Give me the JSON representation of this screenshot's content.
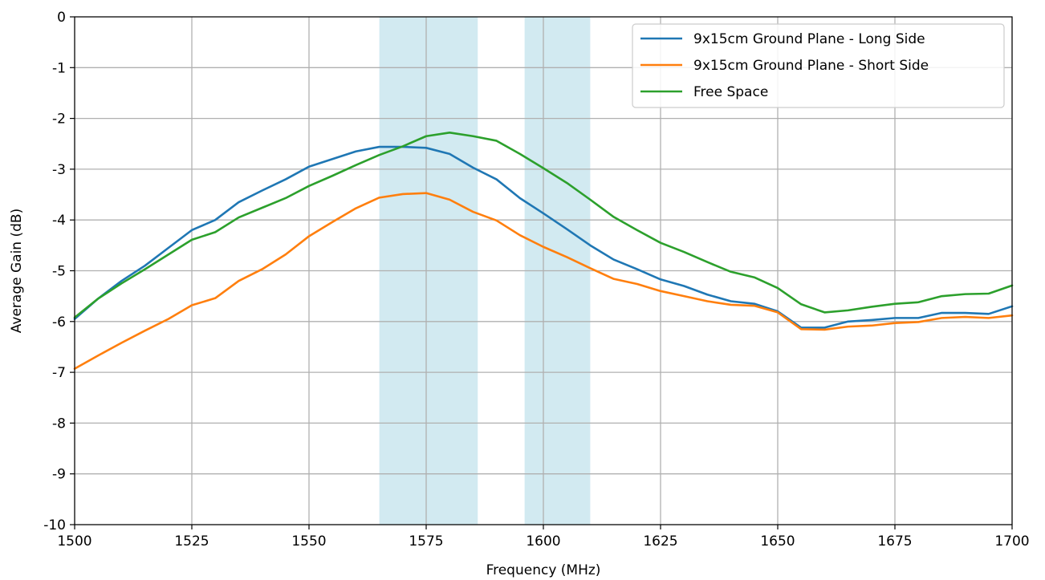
{
  "chart_data": {
    "type": "line",
    "title": "",
    "xlabel": "Frequency (MHz)",
    "ylabel": "Average Gain (dB)",
    "xlim": [
      1500,
      1700
    ],
    "ylim": [
      -10,
      0
    ],
    "xticks": [
      1500,
      1525,
      1550,
      1575,
      1600,
      1625,
      1650,
      1675,
      1700
    ],
    "yticks": [
      0,
      -1,
      -2,
      -3,
      -4,
      -5,
      -6,
      -7,
      -8,
      -9,
      -10
    ],
    "grid": true,
    "legend_position": "top-right",
    "shaded_bands": [
      {
        "x_start": 1565,
        "x_end": 1586,
        "color": "#add8e6"
      },
      {
        "x_start": 1596,
        "x_end": 1610,
        "color": "#add8e6"
      }
    ],
    "series": [
      {
        "name": "9x15cm Ground Plane - Long Side",
        "color": "#1f77b4",
        "x": [
          1500,
          1505,
          1510,
          1515,
          1520,
          1525,
          1530,
          1535,
          1540,
          1545,
          1550,
          1555,
          1560,
          1565,
          1570,
          1575,
          1580,
          1585,
          1590,
          1595,
          1600,
          1605,
          1610,
          1615,
          1620,
          1625,
          1630,
          1635,
          1640,
          1645,
          1650,
          1655,
          1660,
          1665,
          1670,
          1675,
          1680,
          1685,
          1690,
          1695,
          1700
        ],
        "y": [
          -5.95,
          -5.55,
          -5.2,
          -4.9,
          -4.55,
          -4.2,
          -4.0,
          -3.65,
          -3.42,
          -3.2,
          -2.95,
          -2.8,
          -2.65,
          -2.56,
          -2.56,
          -2.58,
          -2.7,
          -2.97,
          -3.2,
          -3.57,
          -3.87,
          -4.18,
          -4.5,
          -4.78,
          -4.97,
          -5.17,
          -5.3,
          -5.47,
          -5.6,
          -5.65,
          -5.8,
          -6.12,
          -6.12,
          -6.0,
          -5.97,
          -5.93,
          -5.93,
          -5.83,
          -5.83,
          -5.85,
          -5.7
        ]
      },
      {
        "name": "9x15cm Ground Plane - Short Side",
        "color": "#ff7f0e",
        "x": [
          1500,
          1505,
          1510,
          1515,
          1520,
          1525,
          1530,
          1535,
          1540,
          1545,
          1550,
          1555,
          1560,
          1565,
          1570,
          1575,
          1580,
          1585,
          1590,
          1595,
          1600,
          1605,
          1610,
          1615,
          1620,
          1625,
          1630,
          1635,
          1640,
          1645,
          1650,
          1655,
          1660,
          1665,
          1670,
          1675,
          1680,
          1685,
          1690,
          1695,
          1700
        ],
        "y": [
          -6.93,
          -6.67,
          -6.42,
          -6.18,
          -5.95,
          -5.68,
          -5.54,
          -5.2,
          -4.97,
          -4.68,
          -4.32,
          -4.04,
          -3.77,
          -3.56,
          -3.49,
          -3.47,
          -3.6,
          -3.84,
          -4.01,
          -4.3,
          -4.53,
          -4.73,
          -4.95,
          -5.16,
          -5.26,
          -5.4,
          -5.5,
          -5.6,
          -5.67,
          -5.69,
          -5.82,
          -6.15,
          -6.16,
          -6.1,
          -6.08,
          -6.03,
          -6.01,
          -5.93,
          -5.91,
          -5.93,
          -5.88
        ]
      },
      {
        "name": "Free Space",
        "color": "#2ca02c",
        "x": [
          1500,
          1505,
          1510,
          1515,
          1520,
          1525,
          1530,
          1535,
          1540,
          1545,
          1550,
          1555,
          1560,
          1565,
          1570,
          1575,
          1580,
          1585,
          1590,
          1595,
          1600,
          1605,
          1610,
          1615,
          1620,
          1625,
          1630,
          1635,
          1640,
          1645,
          1650,
          1655,
          1660,
          1665,
          1670,
          1675,
          1680,
          1685,
          1690,
          1695,
          1700
        ],
        "y": [
          -5.92,
          -5.55,
          -5.25,
          -4.97,
          -4.68,
          -4.39,
          -4.24,
          -3.95,
          -3.76,
          -3.57,
          -3.33,
          -3.13,
          -2.92,
          -2.72,
          -2.55,
          -2.35,
          -2.28,
          -2.35,
          -2.44,
          -2.7,
          -2.98,
          -3.27,
          -3.6,
          -3.94,
          -4.2,
          -4.45,
          -4.63,
          -4.83,
          -5.02,
          -5.13,
          -5.34,
          -5.66,
          -5.82,
          -5.78,
          -5.71,
          -5.65,
          -5.62,
          -5.5,
          -5.46,
          -5.45,
          -5.29
        ]
      }
    ]
  }
}
